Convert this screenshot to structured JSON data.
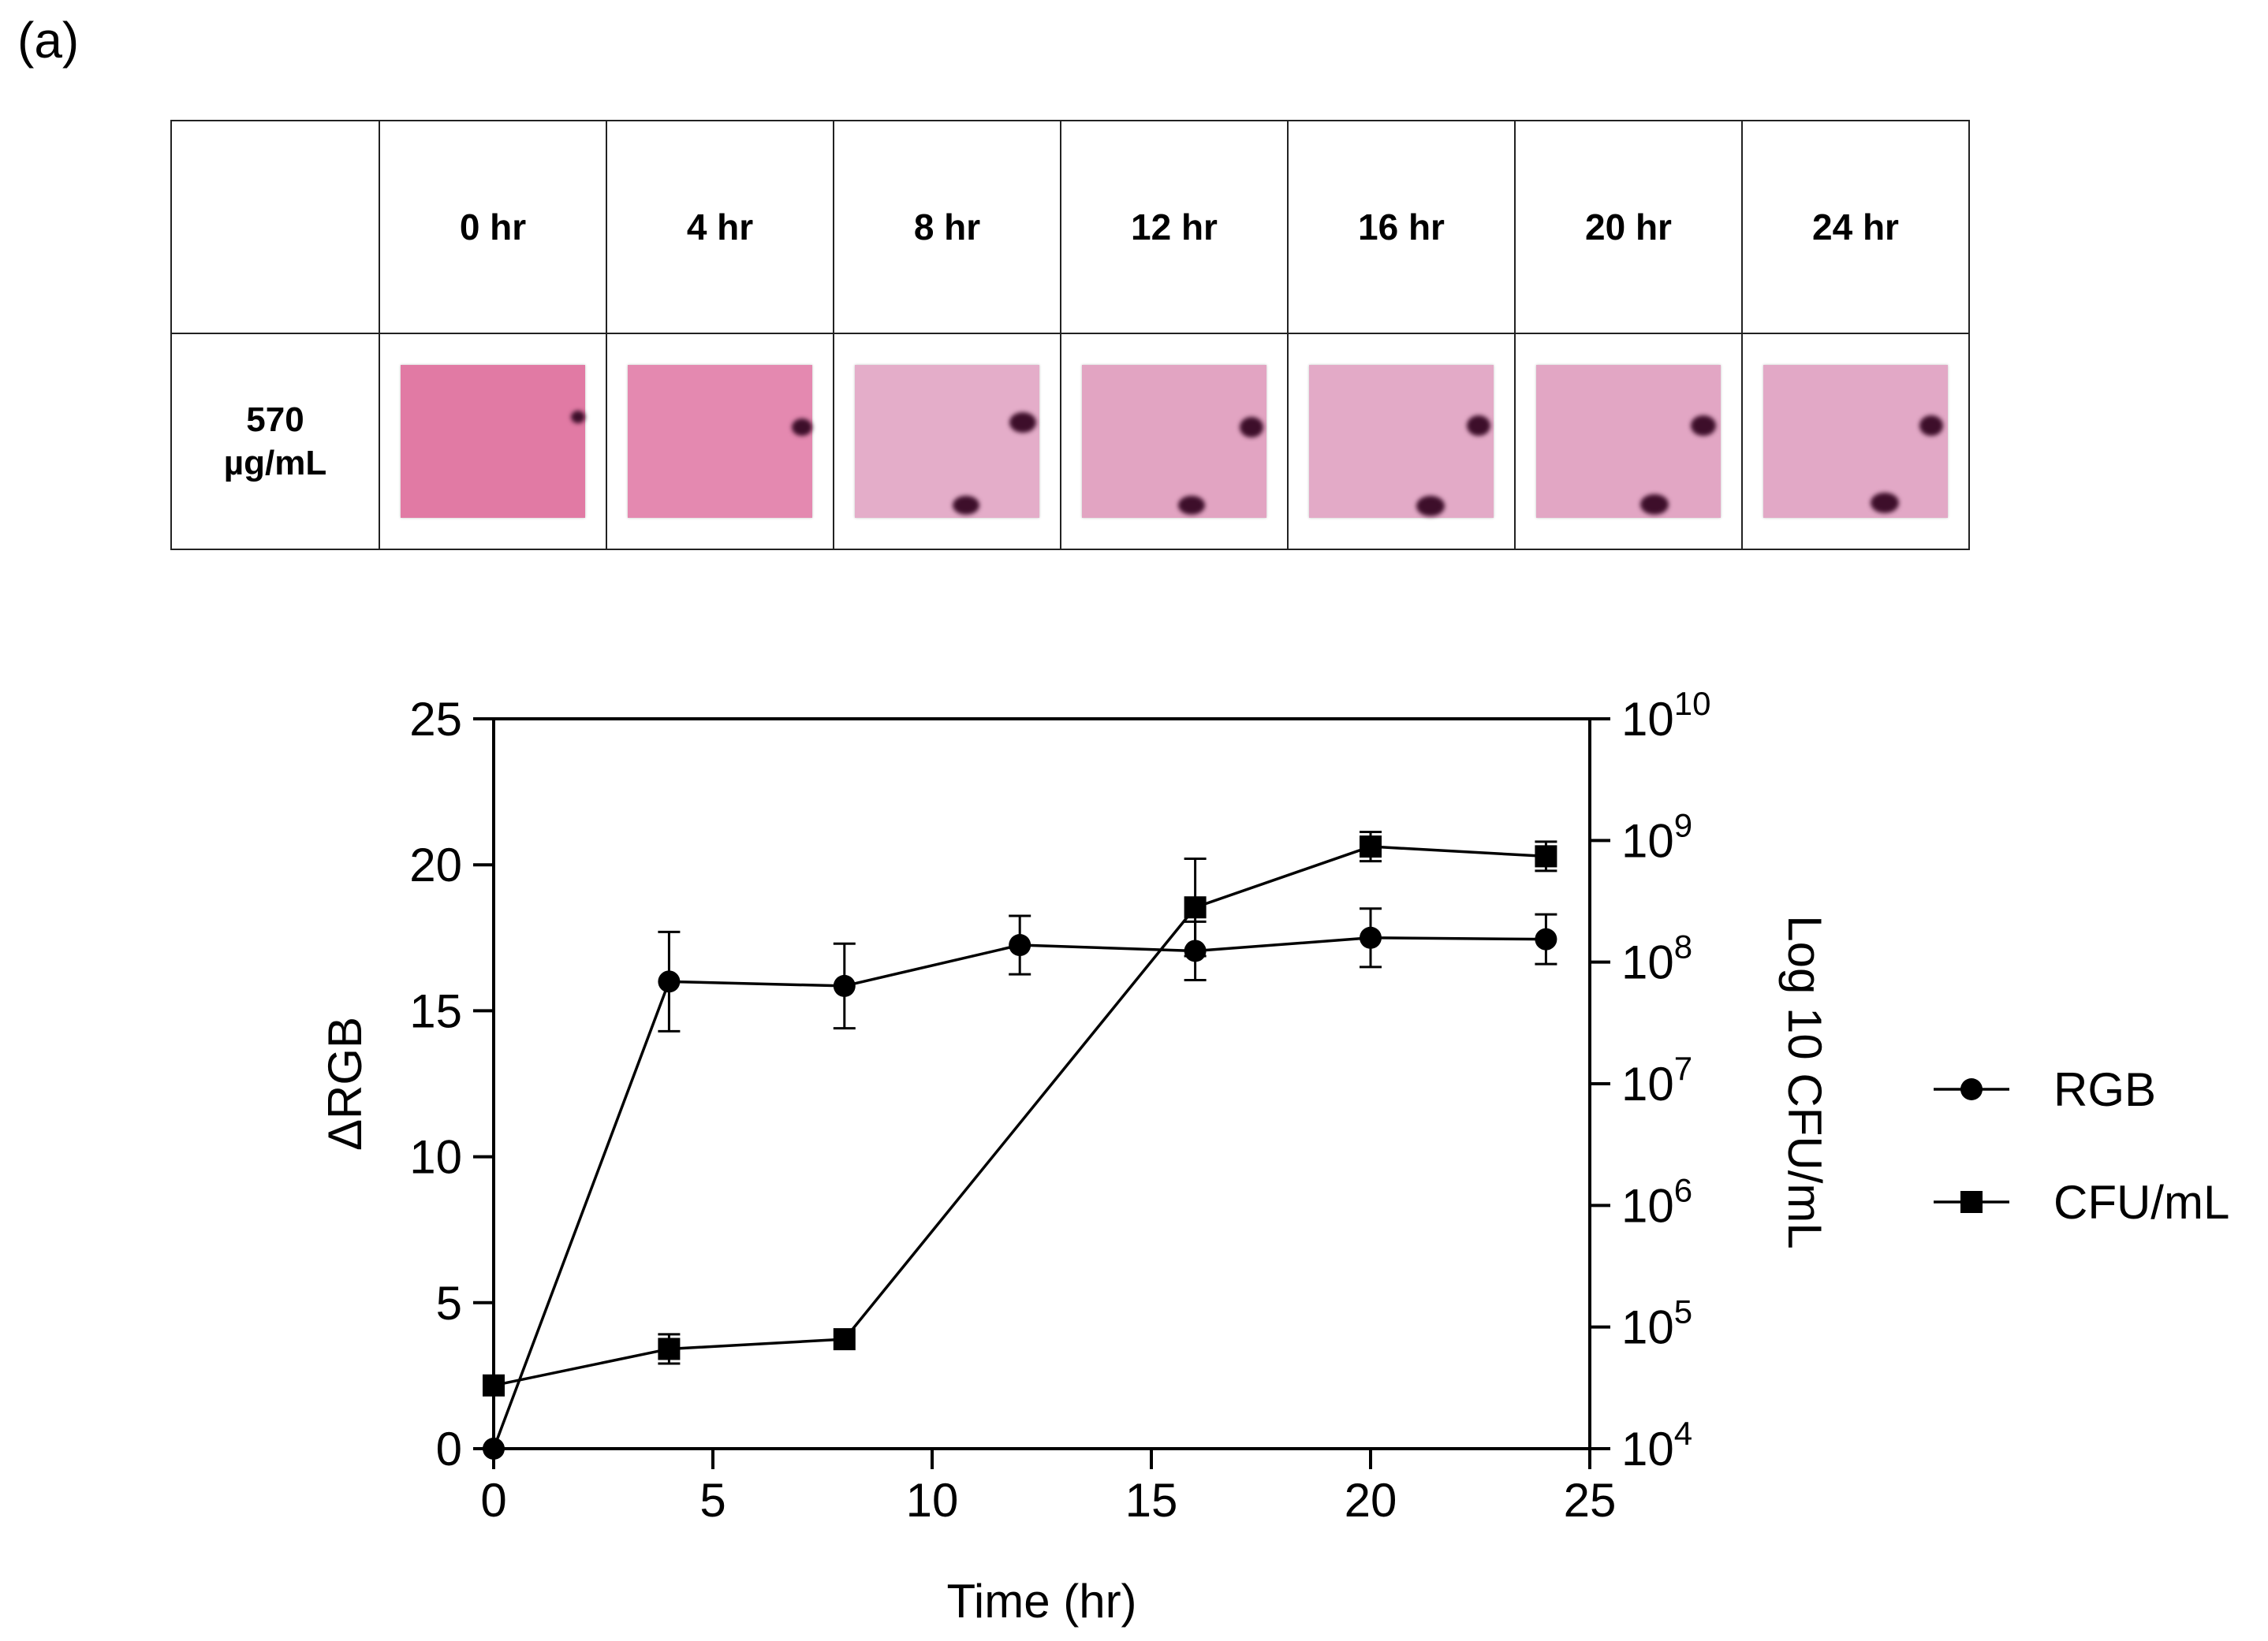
{
  "panel_label": "(a)",
  "table": {
    "corner_label": "",
    "concentration_label": "570\nµg/mL",
    "time_labels": [
      "0 hr",
      "4 hr",
      "8 hr",
      "12 hr",
      "16 hr",
      "20 hr",
      "24 hr"
    ],
    "swatch_colors": [
      "#e17aa4",
      "#e489b0",
      "#e4adc9",
      "#e2a4c2",
      "#e3aac7",
      "#e2a6c4",
      "#e2a8c6"
    ]
  },
  "chart_data": {
    "type": "line",
    "xlabel": "Time (hr)",
    "ylabel_left": "ΔRGB",
    "ylabel_right": "Log 10 CFU/mL",
    "xlim": [
      0,
      25
    ],
    "ylim_left": [
      0,
      25
    ],
    "ylim_right_log10": [
      4,
      10
    ],
    "x_ticks": [
      0,
      5,
      10,
      15,
      20,
      25
    ],
    "y_left_ticks": [
      0,
      5,
      10,
      15,
      20,
      25
    ],
    "y_right_tick_exponents": [
      4,
      5,
      6,
      7,
      8,
      9,
      10
    ],
    "y_right_tick_base": "10",
    "series": [
      {
        "name": "RGB",
        "marker": "circle",
        "axis": "left",
        "x": [
          0,
          4,
          8,
          12,
          16,
          20,
          24
        ],
        "y": [
          0,
          16.0,
          15.85,
          17.25,
          17.05,
          17.5,
          17.45
        ],
        "err": [
          0,
          1.7,
          1.45,
          1.0,
          1.0,
          1.0,
          0.85
        ]
      },
      {
        "name": "CFU/mL",
        "marker": "square",
        "axis": "right",
        "x": [
          0,
          4,
          8,
          16,
          20,
          24
        ],
        "y_log10": [
          4.52,
          4.82,
          4.9,
          8.45,
          8.95,
          8.87
        ],
        "err_log10": [
          0,
          0.12,
          0,
          0.4,
          0.12,
          0.12
        ]
      }
    ],
    "legend": [
      "RGB",
      "CFU/mL"
    ],
    "legend_position": "right"
  }
}
